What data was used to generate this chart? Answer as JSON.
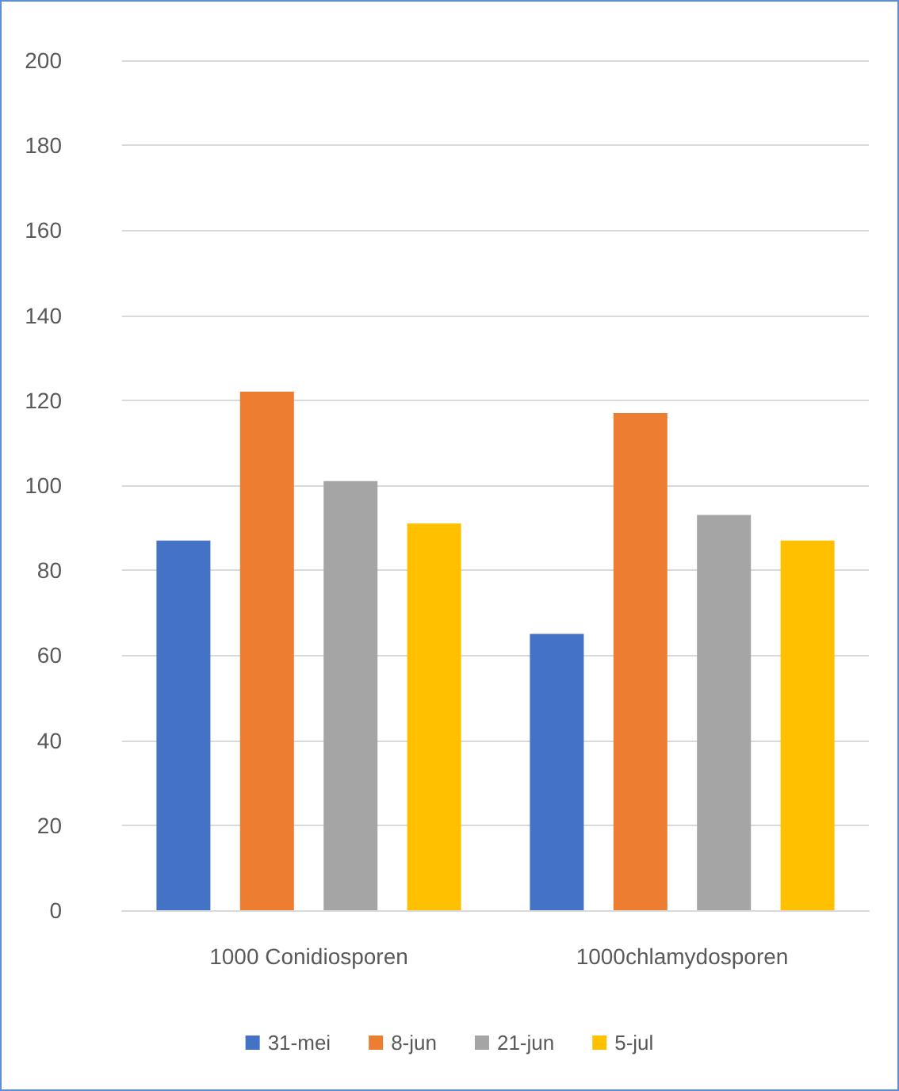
{
  "chart_data": {
    "type": "bar",
    "categories": [
      "1000 Conidiosporen",
      "1000chlamydosporen"
    ],
    "series": [
      {
        "name": "31-mei",
        "color": "#4472c4",
        "values": [
          87,
          65
        ]
      },
      {
        "name": "8-jun",
        "color": "#ed7d31",
        "values": [
          122,
          117
        ]
      },
      {
        "name": "21-jun",
        "color": "#a5a5a5",
        "values": [
          101,
          93
        ]
      },
      {
        "name": "5-jul",
        "color": "#ffc000",
        "values": [
          91,
          87
        ]
      }
    ],
    "ylim": [
      0,
      200
    ],
    "yticks": [
      0,
      20,
      40,
      60,
      80,
      100,
      120,
      140,
      160,
      180,
      200
    ],
    "grid": "y",
    "legend": "bottom"
  }
}
